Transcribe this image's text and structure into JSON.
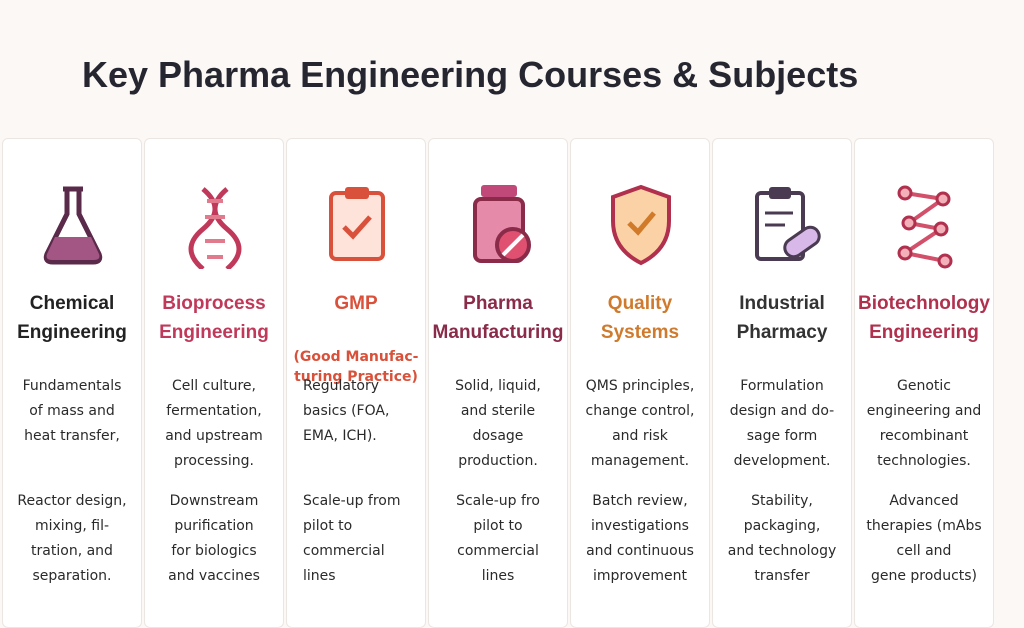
{
  "header": {
    "title": "Key Pharma Engineering Courses & Subjects"
  },
  "cards": [
    {
      "title": [
        "Chemical",
        "Engineering"
      ],
      "p1": [
        "Fundamentals",
        "of mass and",
        "heat transfer,"
      ],
      "p2": [
        "Reactor design,",
        "mixing, fil-",
        "tration, and",
        "separation."
      ]
    },
    {
      "title": [
        "Bioprocess",
        "Engineering"
      ],
      "p1": [
        "Cell culture,",
        "fermentation,",
        "and upstream",
        "processing."
      ],
      "p2": [
        "Downstream",
        "purification",
        "for biologics",
        "and vaccines"
      ]
    },
    {
      "title": [
        "GMP"
      ],
      "subtitle": [
        "(Good Manufac-",
        "turing Practice)"
      ],
      "p1": [
        "Regulatory",
        "basics (FOA,",
        "EMA, ICH)."
      ],
      "p2": [
        "Scale-up from",
        "pilot to",
        "commercial",
        "lines"
      ]
    },
    {
      "title": [
        "Pharma",
        "Manufacturing"
      ],
      "p1": [
        "Solid, liquid,",
        "and sterile",
        "dosage",
        "production."
      ],
      "p2": [
        "Scale-up fro",
        "pilot to",
        "commercial",
        "lines"
      ]
    },
    {
      "title": [
        "Quality",
        "Systems"
      ],
      "p1": [
        "QMS principles,",
        "change control,",
        "and risk",
        "management."
      ],
      "p2": [
        "Batch review,",
        "investigations",
        "and continuous",
        "improvement"
      ]
    },
    {
      "title": [
        "Industrial",
        "Pharmacy"
      ],
      "p1": [
        "Formulation",
        "design and do-",
        "sage form",
        "development."
      ],
      "p2": [
        "Stability,",
        "packaging,",
        "and technology",
        "transfer"
      ]
    },
    {
      "title": [
        "Biotechnology",
        "Engineering"
      ],
      "p1": [
        "Genotic",
        "engineering and",
        "recombinant",
        "technologies."
      ],
      "p2": [
        "Advanced",
        "therapies (mAbs",
        "cell and",
        "gene products)"
      ]
    }
  ]
}
